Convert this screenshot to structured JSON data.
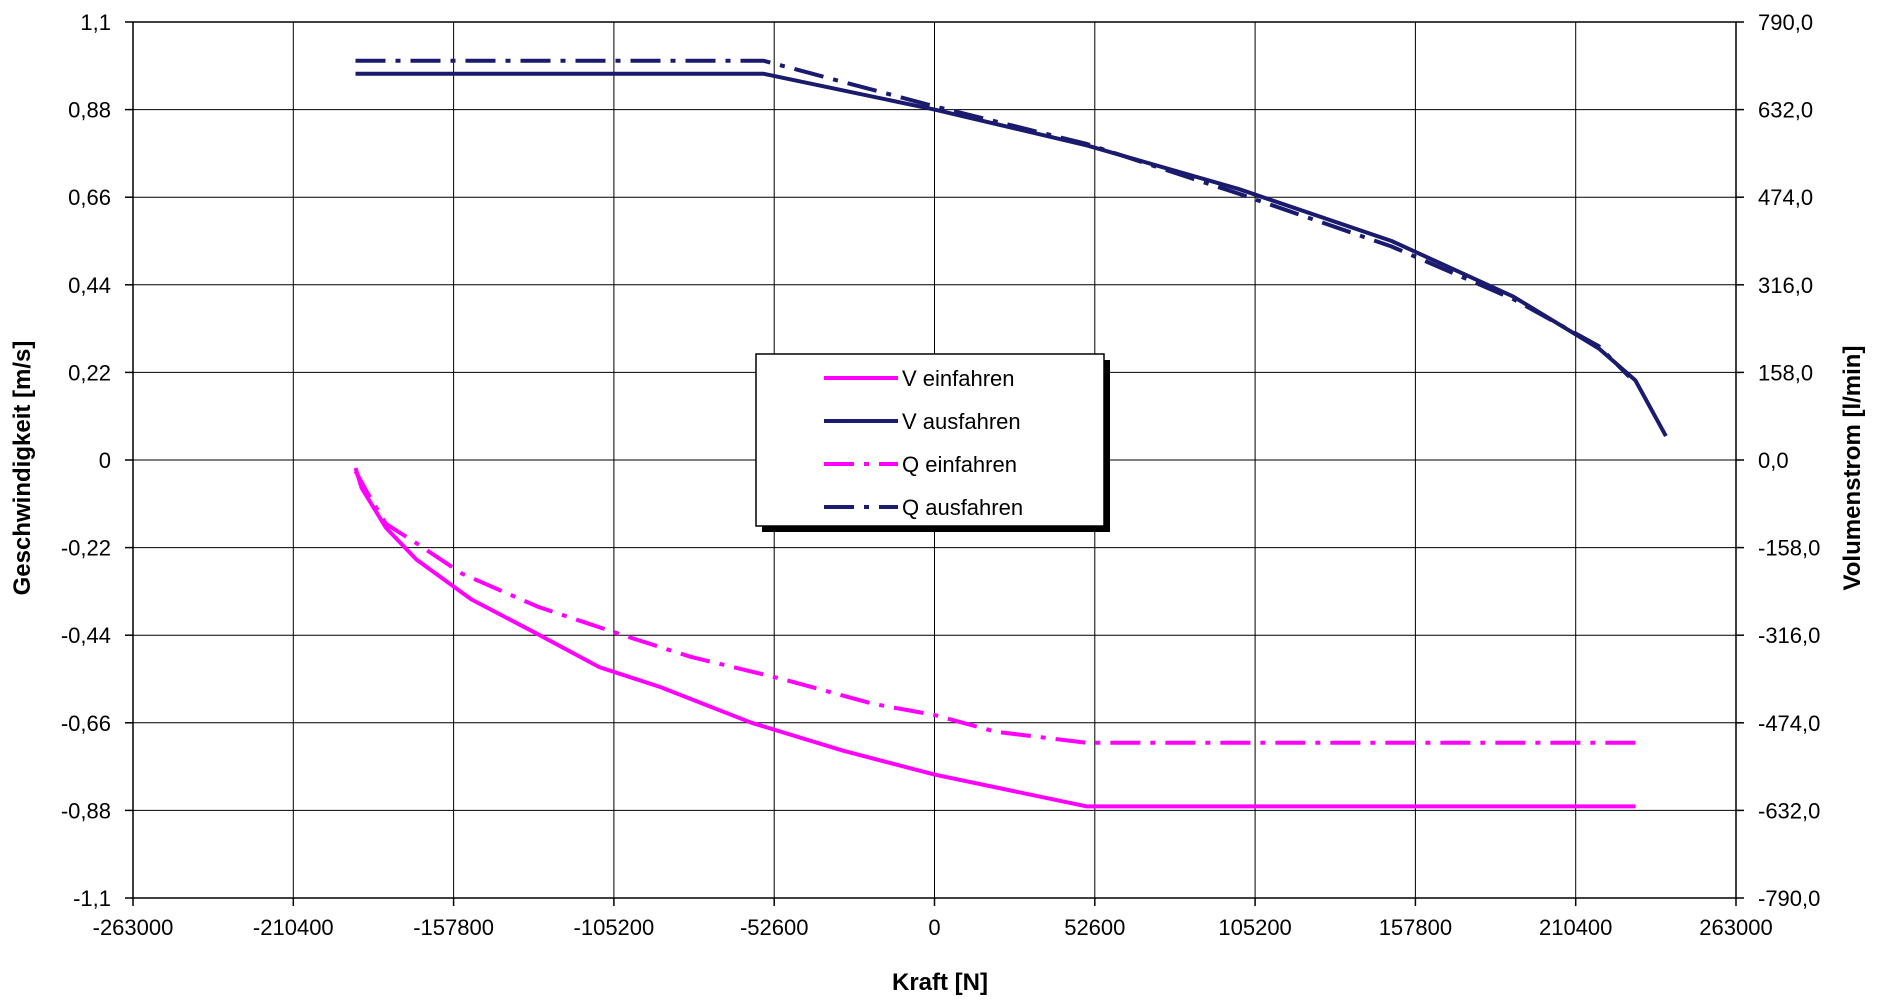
{
  "chart_data": {
    "type": "line",
    "title": "",
    "xlabel": "Kraft [N]",
    "ylabel": "Geschwindigkeit [m/s]",
    "y2label": "Volumenstrom [l/min]",
    "xlim": [
      -263000,
      263000
    ],
    "ylim": [
      -1.1,
      1.1
    ],
    "y2lim": [
      -790,
      790
    ],
    "x_ticks": [
      "-263000",
      "-210400",
      "-157800",
      "-105200",
      "-52600",
      "0",
      "52600",
      "105200",
      "157800",
      "210400",
      "263000"
    ],
    "y_ticks": [
      "1,1",
      "0,88",
      "0,66",
      "0,44",
      "0,22",
      "0",
      "-0,22",
      "-0,44",
      "-0,66",
      "-0,88",
      "-1,1"
    ],
    "y2_ticks": [
      "790,0",
      "632,0",
      "474,0",
      "316,0",
      "158,0",
      "0,0",
      "-158,0",
      "-316,0",
      "-474,0",
      "-632,0",
      "-790,0"
    ],
    "grid": true,
    "legend_position": "center",
    "colors": {
      "magenta": "#ff00ff",
      "navy": "#1a1a6e"
    },
    "series": [
      {
        "name": "V einfahren",
        "axis": "left",
        "style": "solid",
        "color": "#ff00ff",
        "points": [
          [
            -190000,
            -0.02
          ],
          [
            -188000,
            -0.07
          ],
          [
            -180000,
            -0.17
          ],
          [
            -170000,
            -0.25
          ],
          [
            -152000,
            -0.35
          ],
          [
            -132000,
            -0.43
          ],
          [
            -110000,
            -0.52
          ],
          [
            -90000,
            -0.57
          ],
          [
            -60000,
            -0.66
          ],
          [
            -30000,
            -0.73
          ],
          [
            0,
            -0.79
          ],
          [
            25000,
            -0.83
          ],
          [
            50000,
            -0.87
          ],
          [
            230000,
            -0.87
          ]
        ]
      },
      {
        "name": "V ausfahren",
        "axis": "left",
        "style": "solid",
        "color": "#1a1a6e",
        "points": [
          [
            -190000,
            0.97
          ],
          [
            -56000,
            0.97
          ],
          [
            0,
            0.88
          ],
          [
            50000,
            0.79
          ],
          [
            100000,
            0.68
          ],
          [
            150000,
            0.55
          ],
          [
            190000,
            0.41
          ],
          [
            218000,
            0.28
          ],
          [
            230000,
            0.2
          ],
          [
            240000,
            0.06
          ]
        ]
      },
      {
        "name": "Q einfahren",
        "axis": "right",
        "style": "dashdot",
        "color": "#ff00ff",
        "points": [
          [
            -190000,
            -20
          ],
          [
            -186000,
            -60
          ],
          [
            -180000,
            -115
          ],
          [
            -170000,
            -150
          ],
          [
            -155000,
            -205
          ],
          [
            -130000,
            -265
          ],
          [
            -100000,
            -320
          ],
          [
            -80000,
            -355
          ],
          [
            -50000,
            -395
          ],
          [
            -20000,
            -440
          ],
          [
            0,
            -460
          ],
          [
            20000,
            -490
          ],
          [
            50000,
            -510
          ],
          [
            230000,
            -510
          ]
        ]
      },
      {
        "name": "Q ausfahren",
        "axis": "right",
        "style": "dashdot",
        "color": "#1a1a6e",
        "points": [
          [
            -190000,
            720
          ],
          [
            -56000,
            720
          ],
          [
            0,
            638
          ],
          [
            50000,
            570
          ],
          [
            100000,
            480
          ],
          [
            150000,
            385
          ],
          [
            190000,
            290
          ],
          [
            218000,
            205
          ],
          [
            228000,
            150
          ]
        ]
      }
    ]
  }
}
